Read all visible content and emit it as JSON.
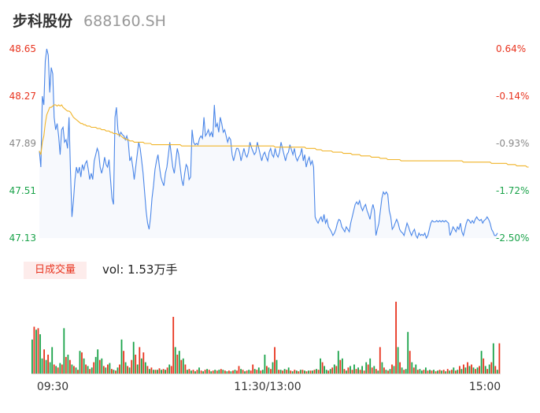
{
  "header": {
    "name": "步科股份",
    "code": "688160.SH"
  },
  "volume_panel": {
    "tag_label": "日成交量",
    "vol_label": "vol: 1.53万手"
  },
  "colors": {
    "price_line": "#4a86e8",
    "avg_line": "#f0b429",
    "up": "#e8341f",
    "down": "#1aa34a",
    "grid_fill": "#f7f9fd"
  },
  "chart_data": [
    {
      "type": "line",
      "title": "",
      "y_ticks_left": [
        "48.65",
        "48.27",
        "47.89",
        "47.51",
        "47.13"
      ],
      "y_ticks_right": [
        "0.64%",
        "-0.14%",
        "-0.93%",
        "-1.72%",
        "-2.50%"
      ],
      "ylim": [
        47.13,
        48.65
      ],
      "x_ticks": [
        "09:30",
        "11:30/13:00",
        "15:00"
      ],
      "series": [
        {
          "values": [
            47.83,
            47.7,
            48.27,
            48.2,
            48.55,
            48.65,
            48.6,
            48.3,
            48.5,
            48.45,
            48.1,
            48.0,
            48.05,
            47.95,
            47.8,
            48.0,
            48.02,
            47.9,
            47.92,
            47.85,
            48.1,
            47.65,
            47.3,
            47.43,
            47.6,
            47.7,
            47.65,
            47.7,
            47.62,
            47.72,
            47.68,
            47.73,
            47.75,
            47.68,
            47.6,
            47.65,
            47.6,
            47.75,
            47.8,
            47.85,
            47.82,
            47.7,
            47.65,
            47.7,
            47.78,
            47.72,
            47.7,
            47.76,
            47.6,
            47.45,
            47.4,
            48.1,
            48.18,
            48.0,
            47.95,
            47.98,
            47.96,
            47.95,
            47.92,
            47.95,
            47.9,
            47.75,
            47.78,
            47.7,
            47.6,
            47.7,
            47.8,
            47.9,
            47.85,
            47.75,
            47.65,
            47.5,
            47.35,
            47.25,
            47.2,
            47.3,
            47.45,
            47.55,
            47.68,
            47.75,
            47.8,
            47.7,
            47.62,
            47.58,
            47.55,
            47.65,
            47.7,
            47.8,
            47.9,
            47.8,
            47.7,
            47.65,
            47.75,
            47.85,
            47.8,
            47.7,
            47.6,
            47.55,
            47.65,
            47.72,
            47.7,
            47.6,
            47.62,
            48.0,
            47.9,
            47.88,
            47.89,
            47.88,
            47.93,
            47.95,
            47.93,
            48.1,
            47.95,
            47.97,
            48.0,
            47.95,
            47.98,
            47.94,
            48.2,
            48.02,
            48.05,
            47.98,
            48.1,
            48.05,
            47.98,
            48.0,
            47.95,
            47.9,
            47.94,
            47.92,
            47.8,
            47.75,
            47.8,
            47.85,
            47.85,
            47.82,
            47.75,
            47.8,
            47.85,
            47.8,
            47.78,
            47.82,
            47.9,
            47.86,
            47.83,
            47.8,
            47.82,
            47.9,
            47.85,
            47.8,
            47.75,
            47.8,
            47.82,
            47.78,
            47.75,
            47.82,
            47.85,
            47.8,
            47.78,
            47.85,
            47.8,
            47.78,
            47.82,
            47.9,
            47.85,
            47.8,
            47.75,
            47.8,
            47.82,
            47.88,
            47.84,
            47.8,
            47.85,
            47.78,
            47.75,
            47.78,
            47.8,
            47.85,
            47.75,
            47.8,
            47.7,
            47.75,
            47.78,
            47.72,
            47.75,
            47.7,
            47.3,
            47.27,
            47.25,
            47.28,
            47.3,
            47.26,
            47.32,
            47.25,
            47.28,
            47.22,
            47.2,
            47.18,
            47.15,
            47.17,
            47.2,
            47.25,
            47.28,
            47.27,
            47.22,
            47.2,
            47.18,
            47.22,
            47.2,
            47.18,
            47.25,
            47.3,
            47.35,
            47.4,
            47.42,
            47.4,
            47.43,
            47.38,
            47.35,
            47.38,
            47.4,
            47.35,
            47.32,
            47.28,
            47.35,
            47.4,
            47.35,
            47.15,
            47.2,
            47.25,
            47.35,
            47.45,
            47.5,
            47.48,
            47.5,
            47.48,
            47.35,
            47.3,
            47.2,
            47.22,
            47.25,
            47.28,
            47.25,
            47.2,
            47.18,
            47.17,
            47.15,
            47.2,
            47.25,
            47.22,
            47.18,
            47.15,
            47.18,
            47.2,
            47.15,
            47.13,
            47.17,
            47.15,
            47.16,
            47.15,
            47.17,
            47.13,
            47.15,
            47.2,
            47.25,
            47.27,
            47.26,
            47.26,
            47.27,
            47.26,
            47.27,
            47.26,
            47.27,
            47.26,
            47.27,
            47.26,
            47.25,
            47.15,
            47.18,
            47.22,
            47.2,
            47.18,
            47.22,
            47.2,
            47.25,
            47.18,
            47.15,
            47.2,
            47.25,
            47.28,
            47.27,
            47.25,
            47.27,
            47.25,
            47.28,
            47.3,
            47.28,
            47.27,
            47.28,
            47.25,
            47.27,
            47.28,
            47.3,
            47.28,
            47.25,
            47.2,
            47.18,
            47.15,
            47.15,
            47.17
          ]
        },
        {
          "values": [
            47.83,
            47.8,
            47.9,
            47.95,
            48.05,
            48.12,
            48.15,
            48.18,
            48.18,
            48.19,
            48.2,
            48.2,
            48.19,
            48.2,
            48.19,
            48.2,
            48.18,
            48.17,
            48.16,
            48.15,
            48.15,
            48.14,
            48.12,
            48.1,
            48.09,
            48.08,
            48.07,
            48.06,
            48.05,
            48.05,
            48.04,
            48.04,
            48.03,
            48.03,
            48.03,
            48.02,
            48.02,
            48.02,
            48.02,
            48.01,
            48.01,
            48.01,
            48.0,
            48.0,
            48.0,
            47.99,
            47.99,
            47.99,
            47.98,
            47.98,
            47.97,
            47.97,
            47.97,
            47.96,
            47.96,
            47.95,
            47.94,
            47.93,
            47.93,
            47.92,
            47.92,
            47.91,
            47.91,
            47.91,
            47.9,
            47.9,
            47.9,
            47.9,
            47.9,
            47.9,
            47.9,
            47.89,
            47.89,
            47.89,
            47.89,
            47.89,
            47.88,
            47.88,
            47.88,
            47.88,
            47.88,
            47.88,
            47.88,
            47.88,
            47.88,
            47.88,
            47.88,
            47.88,
            47.88,
            47.88,
            47.88,
            47.88,
            47.88,
            47.88,
            47.88,
            47.88,
            47.87,
            47.87,
            47.87,
            47.87,
            47.87,
            47.87,
            47.87,
            47.87,
            47.87,
            47.87,
            47.87,
            47.87,
            47.87,
            47.87,
            47.87,
            47.87,
            47.87,
            47.87,
            47.87,
            47.87,
            47.87,
            47.87,
            47.87,
            47.87,
            47.87,
            47.87,
            47.87,
            47.87,
            47.87,
            47.87,
            47.87,
            47.87,
            47.87,
            47.87,
            47.87,
            47.87,
            47.87,
            47.87,
            47.87,
            47.87,
            47.87,
            47.87,
            47.87,
            47.87,
            47.87,
            47.87,
            47.87,
            47.87,
            47.87,
            47.87,
            47.87,
            47.87,
            47.87,
            47.87,
            47.87,
            47.87,
            47.87,
            47.87,
            47.87,
            47.87,
            47.87,
            47.87,
            47.87,
            47.86,
            47.86,
            47.86,
            47.86,
            47.86,
            47.86,
            47.86,
            47.86,
            47.86,
            47.86,
            47.86,
            47.86,
            47.86,
            47.86,
            47.86,
            47.86,
            47.86,
            47.86,
            47.86,
            47.86,
            47.86,
            47.85,
            47.85,
            47.85,
            47.85,
            47.85,
            47.85,
            47.85,
            47.84,
            47.84,
            47.84,
            47.84,
            47.83,
            47.83,
            47.83,
            47.83,
            47.83,
            47.83,
            47.83,
            47.82,
            47.82,
            47.82,
            47.82,
            47.82,
            47.82,
            47.82,
            47.81,
            47.81,
            47.81,
            47.81,
            47.81,
            47.81,
            47.8,
            47.8,
            47.8,
            47.8,
            47.8,
            47.8,
            47.79,
            47.79,
            47.79,
            47.79,
            47.79,
            47.79,
            47.79,
            47.78,
            47.78,
            47.78,
            47.78,
            47.78,
            47.78,
            47.77,
            47.77,
            47.77,
            47.77,
            47.77,
            47.76,
            47.76,
            47.76,
            47.76,
            47.76,
            47.76,
            47.76,
            47.76,
            47.76,
            47.75,
            47.75,
            47.75,
            47.75,
            47.75,
            47.75,
            47.75,
            47.75,
            47.75,
            47.75,
            47.75,
            47.75,
            47.75,
            47.75,
            47.75,
            47.75,
            47.75,
            47.75,
            47.75,
            47.75,
            47.75,
            47.75,
            47.75,
            47.75,
            47.75,
            47.75,
            47.75,
            47.75,
            47.75,
            47.75,
            47.75,
            47.75,
            47.75,
            47.75,
            47.75,
            47.75,
            47.75,
            47.75,
            47.75,
            47.75,
            47.75,
            47.75,
            47.74,
            47.74,
            47.74,
            47.74,
            47.74,
            47.74,
            47.74,
            47.74,
            47.74,
            47.74,
            47.74,
            47.74,
            47.74,
            47.74,
            47.74,
            47.74,
            47.74,
            47.74,
            47.74,
            47.73,
            47.73,
            47.73,
            47.73,
            47.73,
            47.73,
            47.73,
            47.73,
            47.73,
            47.73,
            47.73,
            47.72,
            47.72,
            47.72,
            47.72,
            47.72,
            47.72,
            47.71,
            47.71,
            47.71,
            47.71,
            47.71,
            47.71,
            47.71,
            47.7,
            47.7
          ]
        }
      ]
    },
    {
      "type": "bar",
      "title": "",
      "x_ticks": [
        "09:30",
        "11:30/13:00",
        "15:00"
      ],
      "values": [
        0.45,
        0.62,
        0.58,
        0.6,
        0.52,
        0.2,
        0.32,
        0.18,
        0.25,
        0.15,
        0.35,
        0.12,
        0.1,
        0.08,
        0.14,
        0.12,
        0.6,
        0.22,
        0.25,
        0.18,
        0.12,
        0.1,
        0.08,
        0.05,
        0.3,
        0.28,
        0.2,
        0.12,
        0.1,
        0.06,
        0.08,
        0.15,
        0.22,
        0.32,
        0.18,
        0.2,
        0.1,
        0.08,
        0.12,
        0.14,
        0.06,
        0.05,
        0.04,
        0.08,
        0.12,
        0.45,
        0.3,
        0.15,
        0.1,
        0.08,
        0.18,
        0.42,
        0.25,
        0.12,
        0.35,
        0.2,
        0.28,
        0.15,
        0.1,
        0.06,
        0.08,
        0.05,
        0.05,
        0.05,
        0.07,
        0.05,
        0.06,
        0.05,
        0.08,
        0.12,
        0.1,
        0.75,
        0.35,
        0.25,
        0.3,
        0.18,
        0.2,
        0.12,
        0.05,
        0.06,
        0.04,
        0.05,
        0.03,
        0.05,
        0.08,
        0.04,
        0.03,
        0.05,
        0.06,
        0.05,
        0.03,
        0.04,
        0.05,
        0.04,
        0.05,
        0.06,
        0.05,
        0.04,
        0.03,
        0.04,
        0.03,
        0.04,
        0.05,
        0.04,
        0.1,
        0.06,
        0.05,
        0.03,
        0.04,
        0.05,
        0.04,
        0.12,
        0.06,
        0.05,
        0.08,
        0.04,
        0.05,
        0.25,
        0.1,
        0.08,
        0.06,
        0.15,
        0.35,
        0.18,
        0.05,
        0.05,
        0.04,
        0.06,
        0.05,
        0.08,
        0.04,
        0.03,
        0.05,
        0.04,
        0.03,
        0.05,
        0.05,
        0.04,
        0.03,
        0.04,
        0.04,
        0.04,
        0.05,
        0.06,
        0.05,
        0.2,
        0.15,
        0.1,
        0.05,
        0.04,
        0.06,
        0.08,
        0.12,
        0.1,
        0.3,
        0.18,
        0.2,
        0.06,
        0.04,
        0.08,
        0.1,
        0.05,
        0.12,
        0.06,
        0.08,
        0.05,
        0.1,
        0.04,
        0.15,
        0.12,
        0.2,
        0.08,
        0.1,
        0.06,
        0.04,
        0.35,
        0.15,
        0.08,
        0.05,
        0.04,
        0.06,
        0.12,
        0.1,
        0.95,
        0.35,
        0.15,
        0.08,
        0.05,
        0.06,
        0.55,
        0.3,
        0.15,
        0.08,
        0.12,
        0.05,
        0.06,
        0.04,
        0.05,
        0.08,
        0.04,
        0.05,
        0.04,
        0.05,
        0.03,
        0.04,
        0.05,
        0.04,
        0.05,
        0.03,
        0.06,
        0.04,
        0.05,
        0.08,
        0.04,
        0.05,
        0.1,
        0.06,
        0.12,
        0.08,
        0.15,
        0.1,
        0.12,
        0.08,
        0.06,
        0.08,
        0.1,
        0.3,
        0.2,
        0.1,
        0.06,
        0.12,
        0.15,
        0.4,
        0.1,
        0.05,
        0.4
      ],
      "colors": [
        "g",
        "r",
        "g",
        "r",
        "g",
        "g",
        "r",
        "g",
        "r",
        "g",
        "g",
        "r",
        "g",
        "r",
        "g",
        "r",
        "g",
        "r",
        "g",
        "r",
        "g",
        "r",
        "g",
        "r",
        "g",
        "r",
        "g",
        "r",
        "g",
        "r",
        "g",
        "r",
        "g",
        "g",
        "r",
        "g",
        "r",
        "g",
        "r",
        "g",
        "r",
        "g",
        "r",
        "g",
        "r",
        "g",
        "r",
        "g",
        "r",
        "g",
        "r",
        "g",
        "r",
        "g",
        "r",
        "g",
        "r",
        "g",
        "r",
        "g",
        "r",
        "g",
        "r",
        "g",
        "r",
        "g",
        "r",
        "g",
        "r",
        "g",
        "r",
        "r",
        "g",
        "r",
        "g",
        "r",
        "g",
        "r",
        "g",
        "r",
        "g",
        "r",
        "g",
        "r",
        "g",
        "r",
        "g",
        "r",
        "g",
        "r",
        "g",
        "r",
        "g",
        "r",
        "g",
        "r",
        "g",
        "r",
        "g",
        "r",
        "g",
        "r",
        "g",
        "r",
        "r",
        "g",
        "r",
        "g",
        "r",
        "g",
        "r",
        "r",
        "g",
        "r",
        "g",
        "r",
        "g",
        "g",
        "r",
        "g",
        "r",
        "g",
        "r",
        "g",
        "r",
        "g",
        "r",
        "g",
        "r",
        "g",
        "r",
        "g",
        "r",
        "g",
        "r",
        "g",
        "r",
        "g",
        "r",
        "g",
        "r",
        "g",
        "r",
        "g",
        "r",
        "g",
        "r",
        "g",
        "g",
        "r",
        "g",
        "r",
        "g",
        "r",
        "g",
        "r",
        "g",
        "r",
        "g",
        "r",
        "g",
        "r",
        "g",
        "r",
        "g",
        "r",
        "g",
        "r",
        "g",
        "r",
        "g",
        "r",
        "g",
        "r",
        "g",
        "r",
        "g",
        "r",
        "g",
        "r",
        "g",
        "r",
        "g",
        "r",
        "g",
        "r",
        "g",
        "r",
        "g",
        "g",
        "r",
        "g",
        "r",
        "g",
        "r",
        "g",
        "g",
        "r",
        "g",
        "r",
        "g",
        "r",
        "g",
        "r",
        "g",
        "r",
        "g",
        "r",
        "g",
        "r",
        "g",
        "r",
        "g",
        "r",
        "g",
        "r",
        "g",
        "r",
        "g",
        "r",
        "g",
        "r",
        "g",
        "r",
        "g",
        "r",
        "g",
        "r",
        "g",
        "r",
        "g",
        "r",
        "g",
        "r",
        "g",
        "r",
        "g",
        "r",
        "g",
        "r",
        "g",
        "g",
        "r"
      ]
    }
  ]
}
